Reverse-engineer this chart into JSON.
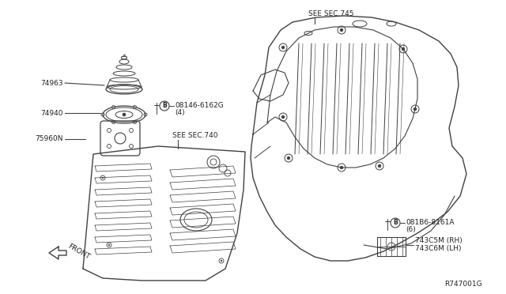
{
  "bg_color": "#ffffff",
  "line_color": "#404040",
  "text_color": "#222222",
  "labels": {
    "part1": "74963",
    "part2": "74940",
    "part3": "75960N",
    "part4_num": "08146-6162G",
    "part4_sub": "(4)",
    "part5": "SEE SEC.745",
    "part6": "SEE SEC.740",
    "part7_num": "081B6-8161A",
    "part7_sub": "(6)",
    "part8_rh": "743C5M (RH)",
    "part8_lh": "743C6M (LH)",
    "front": "FRONT",
    "ref": "R747001G"
  },
  "figsize": [
    6.4,
    3.72
  ],
  "dpi": 100
}
